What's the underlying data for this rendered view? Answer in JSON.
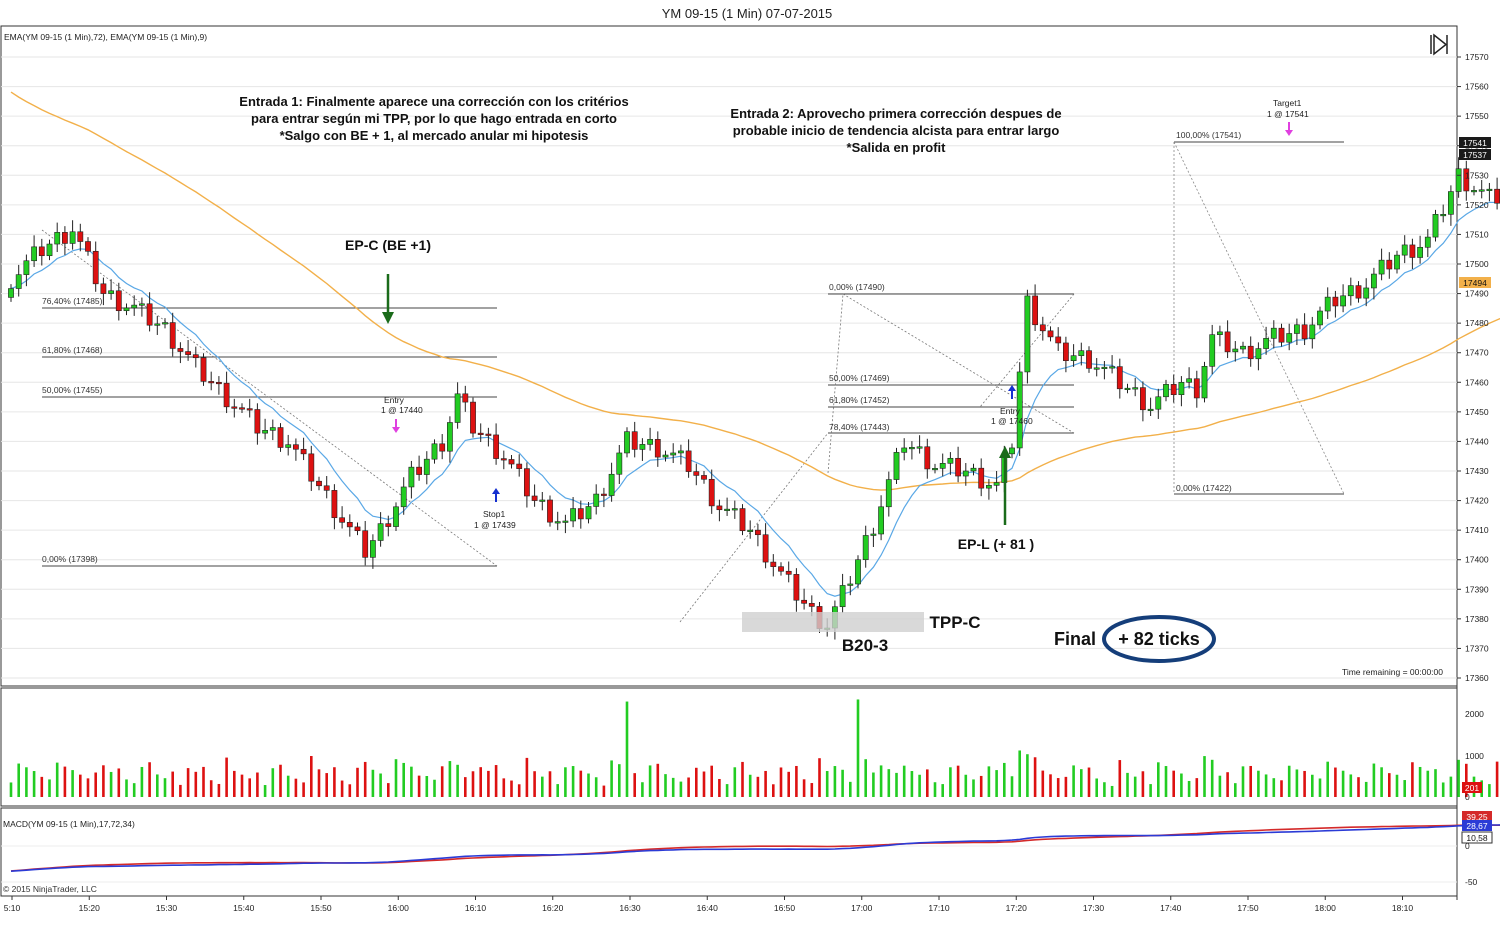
{
  "title": "YM 09-15 (1 Min)  07-07-2015",
  "indicator_label": "EMA(YM 09-15 (1 Min),72), EMA(YM 09-15 (1 Min),9)",
  "macd_label": "MACD(YM 09-15 (1 Min),17,72,34)",
  "copyright": "© 2015 NinjaTrader, LLC",
  "time_remaining": "Time remaining = 00:00:00",
  "annotations": {
    "entrada1": [
      "Entrada 1: Finalmente aparece una corrección con los critérios",
      "para entrar según mi TPP, por lo que hago entrada en corto",
      "*Salgo con BE + 1,  al mercado anular mi hipotesis"
    ],
    "entrada2": [
      "Entrada 2: Aprovecho primera corrección despues de",
      "probable inicio de tendencia alcista para entrar largo",
      "*Salida en profit"
    ],
    "epc": "EP-C (BE +1)",
    "epl": "EP-L (+ 81 )",
    "tppc": "TPP-C",
    "b20": "B20-3",
    "final_label": "Final",
    "final_value": "+ 82 ticks",
    "entry1": [
      "Entry",
      "1 @ 17440"
    ],
    "stop1": [
      "Stop1",
      "1 @ 17439"
    ],
    "entry2": [
      "Entry",
      "1 @ 17460"
    ],
    "target1": [
      "Target1",
      "1 @ 17541"
    ]
  },
  "fib_levels_1": [
    "76,40% (17485)",
    "61,80% (17468)",
    "50,00% (17455)",
    "0,00% (17398)"
  ],
  "fib_levels_2": [
    "0,00% (17490)",
    "50,00% (17469)",
    "61,80% (17452)",
    "78,40% (17443)"
  ],
  "fib_levels_3": [
    "100,00% (17541)",
    "0,00% (17422)"
  ],
  "price_badges": {
    "p1": "17541",
    "p2": "17537",
    "ema": "17494",
    "vol": "201"
  },
  "macd_badges": {
    "a": "39,25",
    "b": "28,67",
    "c": "10,58"
  },
  "colors": {
    "up": "#22cc22",
    "down": "#dd1111",
    "ema72": "#f2b04a",
    "ema9": "#5aa8e6",
    "macd": "#2b3bd6",
    "signal": "#d42a2a",
    "fib": "#555555",
    "arrow": "#1a6b1a"
  },
  "chart_data": {
    "type": "candlestick",
    "ylim": [
      17362,
      17572
    ],
    "y_ticks": [
      17360,
      17370,
      17380,
      17390,
      17400,
      17410,
      17420,
      17430,
      17440,
      17450,
      17460,
      17470,
      17480,
      17490,
      17500,
      17510,
      17520,
      17530,
      17540,
      17550,
      17560,
      17570
    ],
    "x_ticks": [
      "5:10",
      "15:20",
      "15:30",
      "15:40",
      "15:50",
      "16:00",
      "16:10",
      "16:20",
      "16:30",
      "16:40",
      "16:50",
      "17:00",
      "17:10",
      "17:20",
      "17:30",
      "17:40",
      "17:50",
      "18:00",
      "18:10"
    ],
    "volume_ticks": [
      "2000",
      "1000",
      "0"
    ],
    "macd_ticks": [
      "0",
      "-50"
    ],
    "close_anchors": [
      [
        0,
        17495
      ],
      [
        4,
        17505
      ],
      [
        8,
        17512
      ],
      [
        12,
        17490
      ],
      [
        16,
        17485
      ],
      [
        20,
        17478
      ],
      [
        24,
        17465
      ],
      [
        28,
        17455
      ],
      [
        32,
        17445
      ],
      [
        36,
        17440
      ],
      [
        40,
        17425
      ],
      [
        44,
        17410
      ],
      [
        46,
        17403
      ],
      [
        48,
        17410
      ],
      [
        52,
        17428
      ],
      [
        56,
        17440
      ],
      [
        58,
        17455
      ],
      [
        60,
        17445
      ],
      [
        64,
        17435
      ],
      [
        68,
        17420
      ],
      [
        72,
        17412
      ],
      [
        76,
        17420
      ],
      [
        80,
        17440
      ],
      [
        84,
        17438
      ],
      [
        88,
        17432
      ],
      [
        92,
        17418
      ],
      [
        96,
        17410
      ],
      [
        100,
        17395
      ],
      [
        104,
        17382
      ],
      [
        106,
        17378
      ],
      [
        108,
        17388
      ],
      [
        112,
        17412
      ],
      [
        116,
        17440
      ],
      [
        120,
        17432
      ],
      [
        124,
        17430
      ],
      [
        128,
        17425
      ],
      [
        130,
        17440
      ],
      [
        132,
        17487
      ],
      [
        136,
        17470
      ],
      [
        140,
        17468
      ],
      [
        144,
        17460
      ],
      [
        148,
        17452
      ],
      [
        152,
        17460
      ],
      [
        154,
        17458
      ],
      [
        156,
        17475
      ],
      [
        160,
        17470
      ],
      [
        164,
        17475
      ],
      [
        168,
        17478
      ],
      [
        172,
        17488
      ],
      [
        176,
        17493
      ],
      [
        180,
        17503
      ],
      [
        184,
        17508
      ],
      [
        188,
        17530
      ],
      [
        192,
        17522
      ],
      [
        196,
        17525
      ],
      [
        200,
        17545
      ],
      [
        204,
        17555
      ],
      [
        206,
        17545
      ],
      [
        208,
        17540
      ]
    ],
    "volume_spikes": {
      "80": 2300,
      "110": 2350
    }
  }
}
